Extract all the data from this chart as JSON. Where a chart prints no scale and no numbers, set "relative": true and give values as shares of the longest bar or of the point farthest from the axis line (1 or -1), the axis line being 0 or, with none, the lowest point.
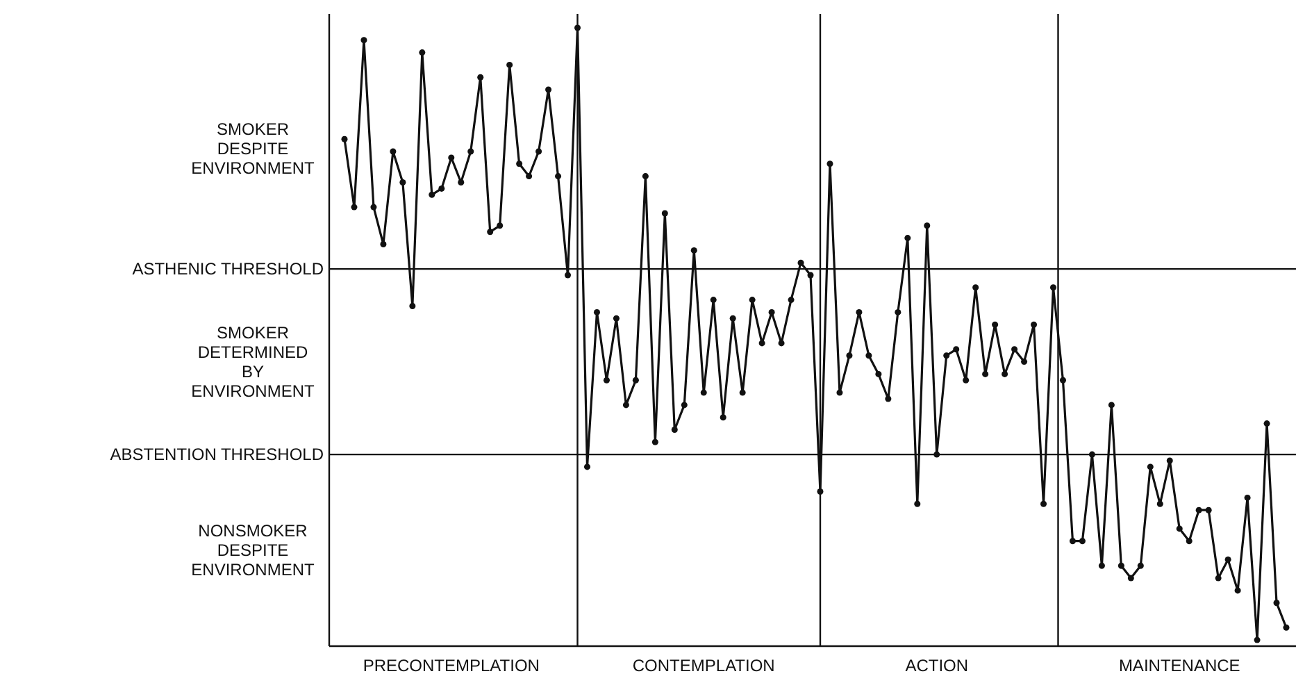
{
  "chart_data": {
    "type": "line",
    "relative": true,
    "marker": "circle",
    "color": "#111111",
    "categories": [
      null,
      null,
      null,
      null,
      null,
      null,
      null,
      null,
      null,
      null,
      null,
      "PRECONTEMPLATION",
      null,
      null,
      null,
      null,
      null,
      null,
      null,
      null,
      null,
      null,
      null,
      null,
      null,
      null,
      null,
      null,
      null,
      null,
      null,
      null,
      null,
      null,
      null,
      null,
      null,
      "CONTEMPLATION",
      null,
      null,
      null,
      null,
      null,
      null,
      null,
      null,
      null,
      null,
      null,
      null,
      null,
      null,
      null,
      null,
      null,
      null,
      null,
      null,
      null,
      null,
      null,
      "ACTION",
      null,
      null,
      null,
      null,
      null,
      null,
      null,
      null,
      null,
      null,
      null,
      null,
      null,
      null,
      null,
      null,
      null,
      null,
      null,
      null,
      null,
      null,
      null,
      null,
      "MAINTENANCE",
      null,
      null,
      null,
      null,
      null,
      null,
      null,
      null,
      null,
      null,
      null
    ],
    "values": [
      0.82,
      0.71,
      0.98,
      0.71,
      0.65,
      0.8,
      0.75,
      0.55,
      0.96,
      0.73,
      0.74,
      0.79,
      0.75,
      0.8,
      0.92,
      0.67,
      0.68,
      0.94,
      0.78,
      0.76,
      0.8,
      0.9,
      0.76,
      0.6,
      1,
      0.29,
      0.54,
      0.43,
      0.53,
      0.39,
      0.43,
      0.76,
      0.33,
      0.7,
      0.35,
      0.39,
      0.64,
      0.41,
      0.56,
      0.37,
      0.53,
      0.41,
      0.56,
      0.49,
      0.54,
      0.49,
      0.56,
      0.62,
      0.6,
      0.25,
      0.78,
      0.41,
      0.47,
      0.54,
      0.47,
      0.44,
      0.4,
      0.54,
      0.66,
      0.23,
      0.68,
      0.31,
      0.47,
      0.48,
      0.43,
      0.58,
      0.44,
      0.52,
      0.44,
      0.48,
      0.46,
      0.52,
      0.23,
      0.58,
      0.43,
      0.17,
      0.17,
      0.31,
      0.13,
      0.39,
      0.13,
      0.11,
      0.13,
      0.29,
      0.23,
      0.3,
      0.19,
      0.17,
      0.22,
      0.22,
      0.11,
      0.14,
      0.09,
      0.24,
      0.01,
      0.36,
      0.07,
      0.03
    ],
    "ref_lines": [
      {
        "axis": "y",
        "value": 0.61,
        "label": "ASTHENIC THRESHOLD"
      },
      {
        "axis": "y",
        "value": 0.31,
        "label": "ABSTENTION THRESHOLD"
      }
    ],
    "annotations": [
      "SMOKER\nDESPITE\nENVIRONMENT",
      "SMOKER\nDETERMINED\nBY\nENVIRONMENT",
      "NONSMOKER\nDESPITE\nENVIRONMENT"
    ]
  }
}
